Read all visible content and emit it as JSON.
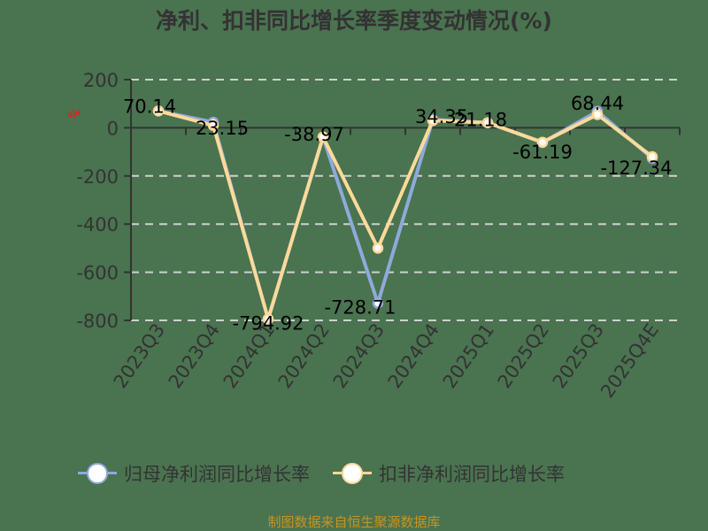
{
  "title": "净利、扣非同比增长率季度变动情况(%)",
  "y_unit_label": "%",
  "footer": "制图数据来自恒生聚源数据库",
  "colors": {
    "background": "#4a7350",
    "series1": "#8eaadb",
    "series2": "#ffd999",
    "grid": "#d0d0d0",
    "axis": "#333333",
    "footer": "#c8941e",
    "unit": "#e02020"
  },
  "legend": [
    {
      "label": "归母净利润同比增长率",
      "color": "#8eaadb"
    },
    {
      "label": "扣非净利润同比增长率",
      "color": "#ffd999"
    }
  ],
  "chart_data": {
    "type": "line",
    "title": "净利、扣非同比增长率季度变动情况(%)",
    "xlabel": "",
    "ylabel": "%",
    "categories": [
      "2023Q3",
      "2023Q4",
      "2024Q1",
      "2024Q2",
      "2024Q3",
      "2024Q4",
      "2025Q1",
      "2025Q2",
      "2025Q3",
      "2025Q4E"
    ],
    "series": [
      {
        "name": "归母净利润同比增长率",
        "values": [
          70.14,
          23.15,
          -794.92,
          -38.97,
          -728.71,
          34.35,
          21.18,
          -61.19,
          68.44,
          -127.34
        ],
        "labeled": true
      },
      {
        "name": "扣非净利润同比增长率",
        "values": [
          70,
          10,
          -794,
          -38,
          -500,
          30,
          21,
          -60,
          55,
          -120
        ],
        "labeled": false
      }
    ],
    "data_labels": [
      "70.14",
      "23.15",
      "-794.92",
      "-38.97",
      "-728.71",
      "34.35",
      "21.18",
      "-61.19",
      "68.44",
      "-127.34"
    ],
    "yticks": [
      200,
      0,
      -200,
      -400,
      -600,
      -800
    ],
    "ylim": [
      -800,
      200
    ],
    "grid": true,
    "grid_style": "dashed",
    "legend_position": "bottom"
  }
}
